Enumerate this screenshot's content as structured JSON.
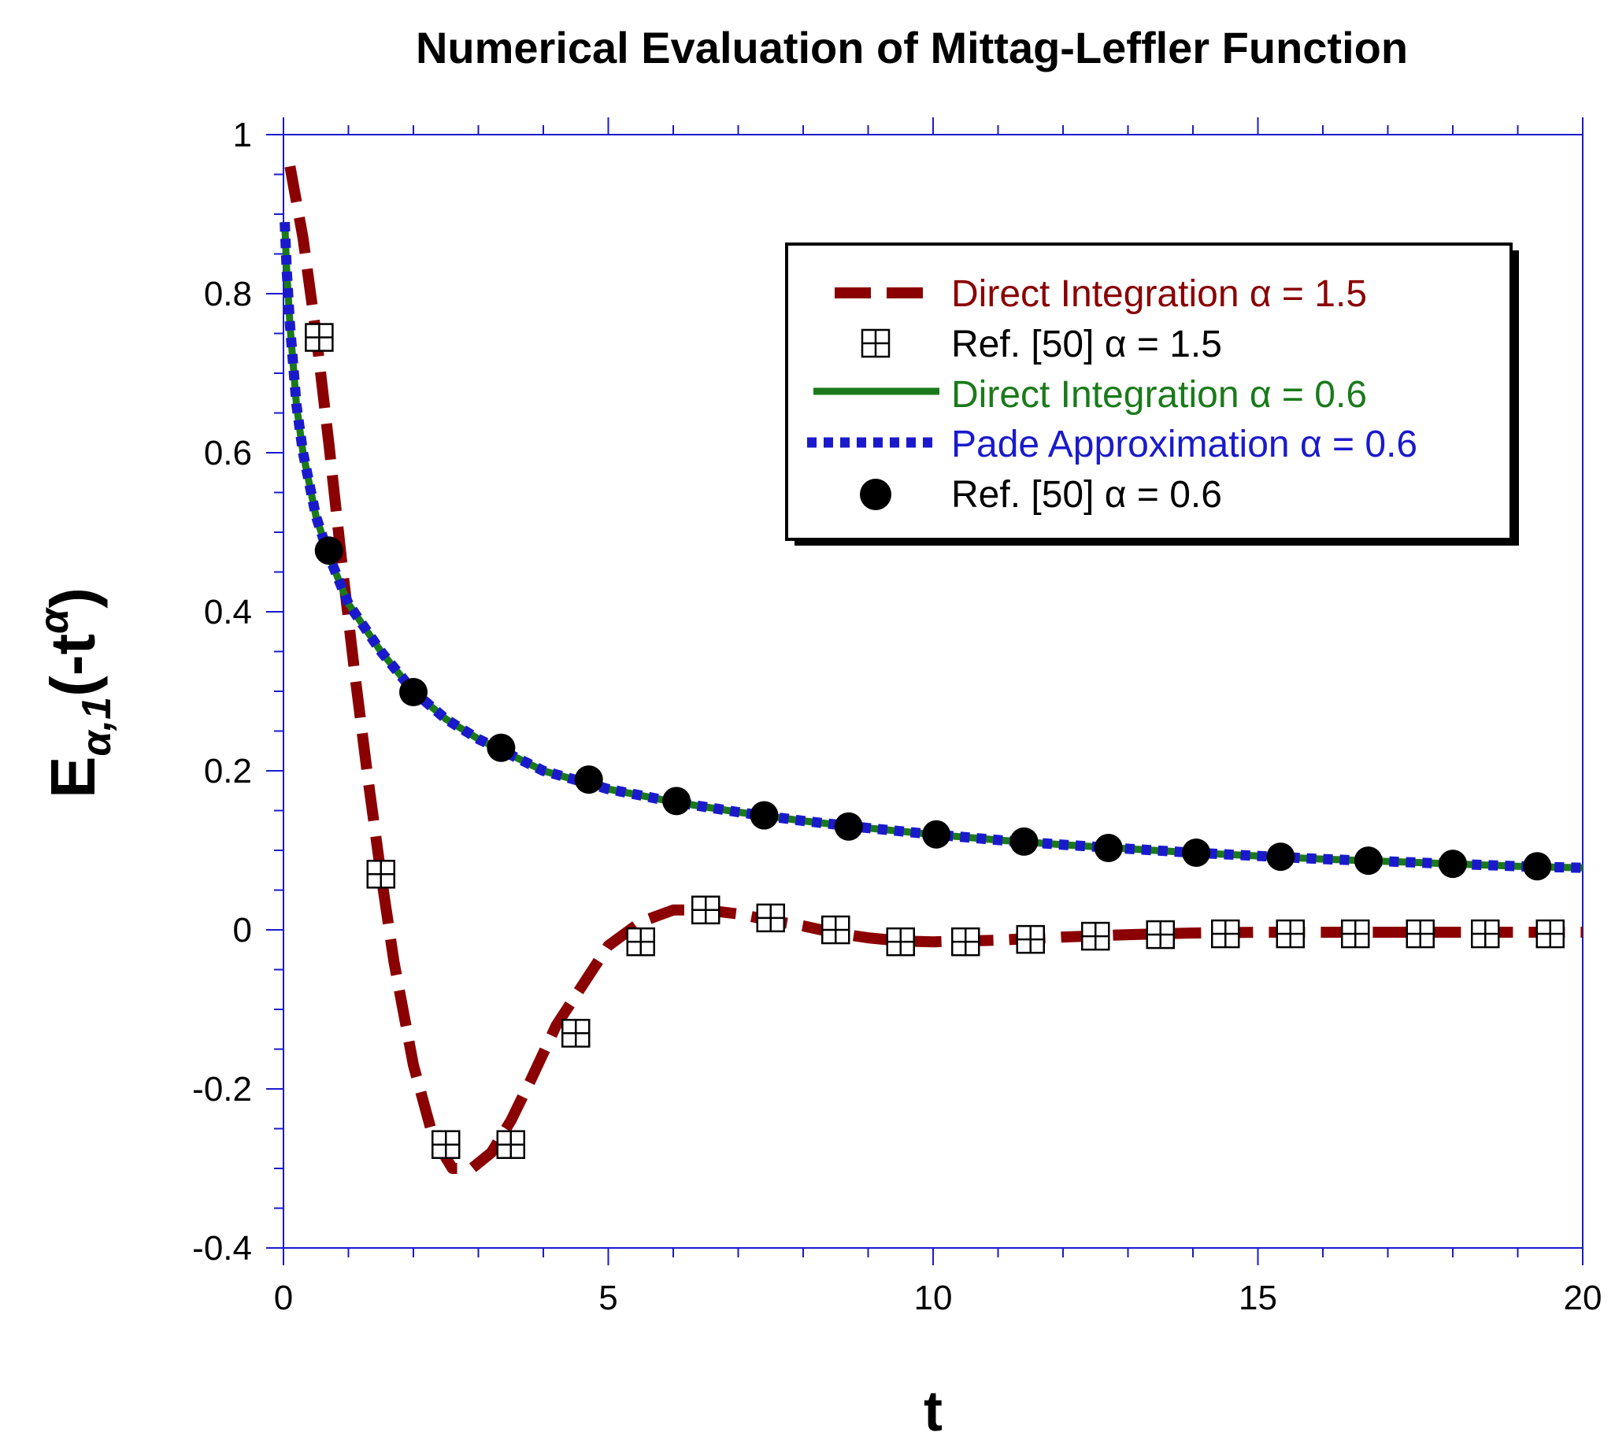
{
  "chart_data": {
    "type": "line",
    "title": "Numerical Evaluation of  Mittag-Leffler Function",
    "xlabel": "t",
    "ylabel": {
      "base": "E",
      "sub": "α,1",
      "arg_open": "(-t",
      "sup": "α",
      "arg_close": ")"
    },
    "xlim": [
      0,
      20
    ],
    "ylim": [
      -0.4,
      1
    ],
    "x_ticks": [
      "0",
      "5",
      "10",
      "15",
      "20"
    ],
    "y_ticks": [
      "-0.4",
      "-0.2",
      "0",
      "0.2",
      "0.4",
      "0.6",
      "0.8",
      "1"
    ],
    "grid": false,
    "legend_position": "top-right",
    "series": [
      {
        "name": "Direct Integration α = 1.5",
        "style": "dashed",
        "color": "#8b0000",
        "x": [
          0.1,
          0.3,
          0.5,
          0.7,
          0.9,
          1.1,
          1.3,
          1.5,
          1.7,
          2.0,
          2.3,
          2.6,
          2.9,
          3.2,
          3.5,
          3.8,
          4.2,
          4.6,
          5.0,
          5.5,
          6.0,
          6.5,
          7.0,
          7.5,
          8.0,
          8.5,
          9.0,
          9.5,
          10.0,
          11.0,
          12.0,
          13.0,
          14.0,
          15.0,
          16.0,
          17.0,
          18.0,
          19.0,
          20.0
        ],
        "y": [
          0.96,
          0.87,
          0.75,
          0.61,
          0.46,
          0.32,
          0.19,
          0.07,
          -0.04,
          -0.17,
          -0.26,
          -0.3,
          -0.3,
          -0.28,
          -0.24,
          -0.19,
          -0.12,
          -0.07,
          -0.02,
          0.01,
          0.025,
          0.025,
          0.02,
          0.012,
          0.005,
          -0.004,
          -0.01,
          -0.014,
          -0.015,
          -0.013,
          -0.009,
          -0.006,
          -0.004,
          -0.003,
          -0.003,
          -0.003,
          -0.003,
          -0.003,
          -0.003
        ]
      },
      {
        "name": "Ref. [50] α = 1.5",
        "style": "markers",
        "marker": "boxed-plus",
        "color": "#000000",
        "x": [
          0.55,
          1.5,
          2.5,
          3.5,
          4.5,
          5.5,
          6.5,
          7.5,
          8.5,
          9.5,
          10.5,
          11.5,
          12.5,
          13.5,
          14.5,
          15.5,
          16.5,
          17.5,
          18.5,
          19.5
        ],
        "y": [
          0.745,
          0.07,
          -0.27,
          -0.27,
          -0.13,
          -0.015,
          0.025,
          0.015,
          0.0,
          -0.015,
          -0.015,
          -0.012,
          -0.008,
          -0.006,
          -0.005,
          -0.005,
          -0.005,
          -0.005,
          -0.005,
          -0.005
        ]
      },
      {
        "name": "Direct Integration α = 0.6",
        "style": "solid",
        "color": "#1a7a1a",
        "x": [
          0.02,
          0.05,
          0.1,
          0.2,
          0.3,
          0.5,
          0.7,
          1.0,
          1.5,
          2.0,
          2.5,
          3.0,
          3.5,
          4.0,
          5.0,
          6.0,
          7.0,
          8.0,
          9.0,
          10.0,
          11.0,
          12.0,
          13.0,
          14.0,
          15.0,
          16.0,
          17.0,
          18.0,
          19.0,
          20.0
        ],
        "y": [
          0.89,
          0.83,
          0.76,
          0.66,
          0.6,
          0.52,
          0.47,
          0.41,
          0.35,
          0.3,
          0.265,
          0.24,
          0.22,
          0.2,
          0.177,
          0.161,
          0.148,
          0.137,
          0.128,
          0.12,
          0.113,
          0.107,
          0.102,
          0.097,
          0.093,
          0.089,
          0.086,
          0.083,
          0.08,
          0.078
        ]
      },
      {
        "name": "Pade Approximation α = 0.6",
        "style": "dotted",
        "color": "#1a1acc",
        "x": [
          0.02,
          0.05,
          0.1,
          0.2,
          0.3,
          0.5,
          0.7,
          1.0,
          1.5,
          2.0,
          2.5,
          3.0,
          3.5,
          4.0,
          5.0,
          6.0,
          7.0,
          8.0,
          9.0,
          10.0,
          11.0,
          12.0,
          13.0,
          14.0,
          15.0,
          16.0,
          17.0,
          18.0,
          19.0,
          20.0
        ],
        "y": [
          0.89,
          0.83,
          0.76,
          0.66,
          0.6,
          0.52,
          0.47,
          0.41,
          0.35,
          0.3,
          0.265,
          0.24,
          0.22,
          0.2,
          0.177,
          0.161,
          0.148,
          0.137,
          0.128,
          0.12,
          0.113,
          0.107,
          0.102,
          0.097,
          0.093,
          0.089,
          0.086,
          0.083,
          0.08,
          0.078
        ]
      },
      {
        "name": "Ref. [50]  α = 0.6",
        "style": "markers",
        "marker": "filled-circle",
        "color": "#000000",
        "x": [
          0.7,
          2.0,
          3.35,
          4.7,
          6.05,
          7.4,
          8.7,
          10.05,
          11.4,
          12.7,
          14.05,
          15.35,
          16.7,
          18.0,
          19.3
        ],
        "y": [
          0.477,
          0.299,
          0.229,
          0.189,
          0.162,
          0.144,
          0.13,
          0.12,
          0.111,
          0.103,
          0.097,
          0.092,
          0.087,
          0.083,
          0.08
        ]
      }
    ]
  }
}
